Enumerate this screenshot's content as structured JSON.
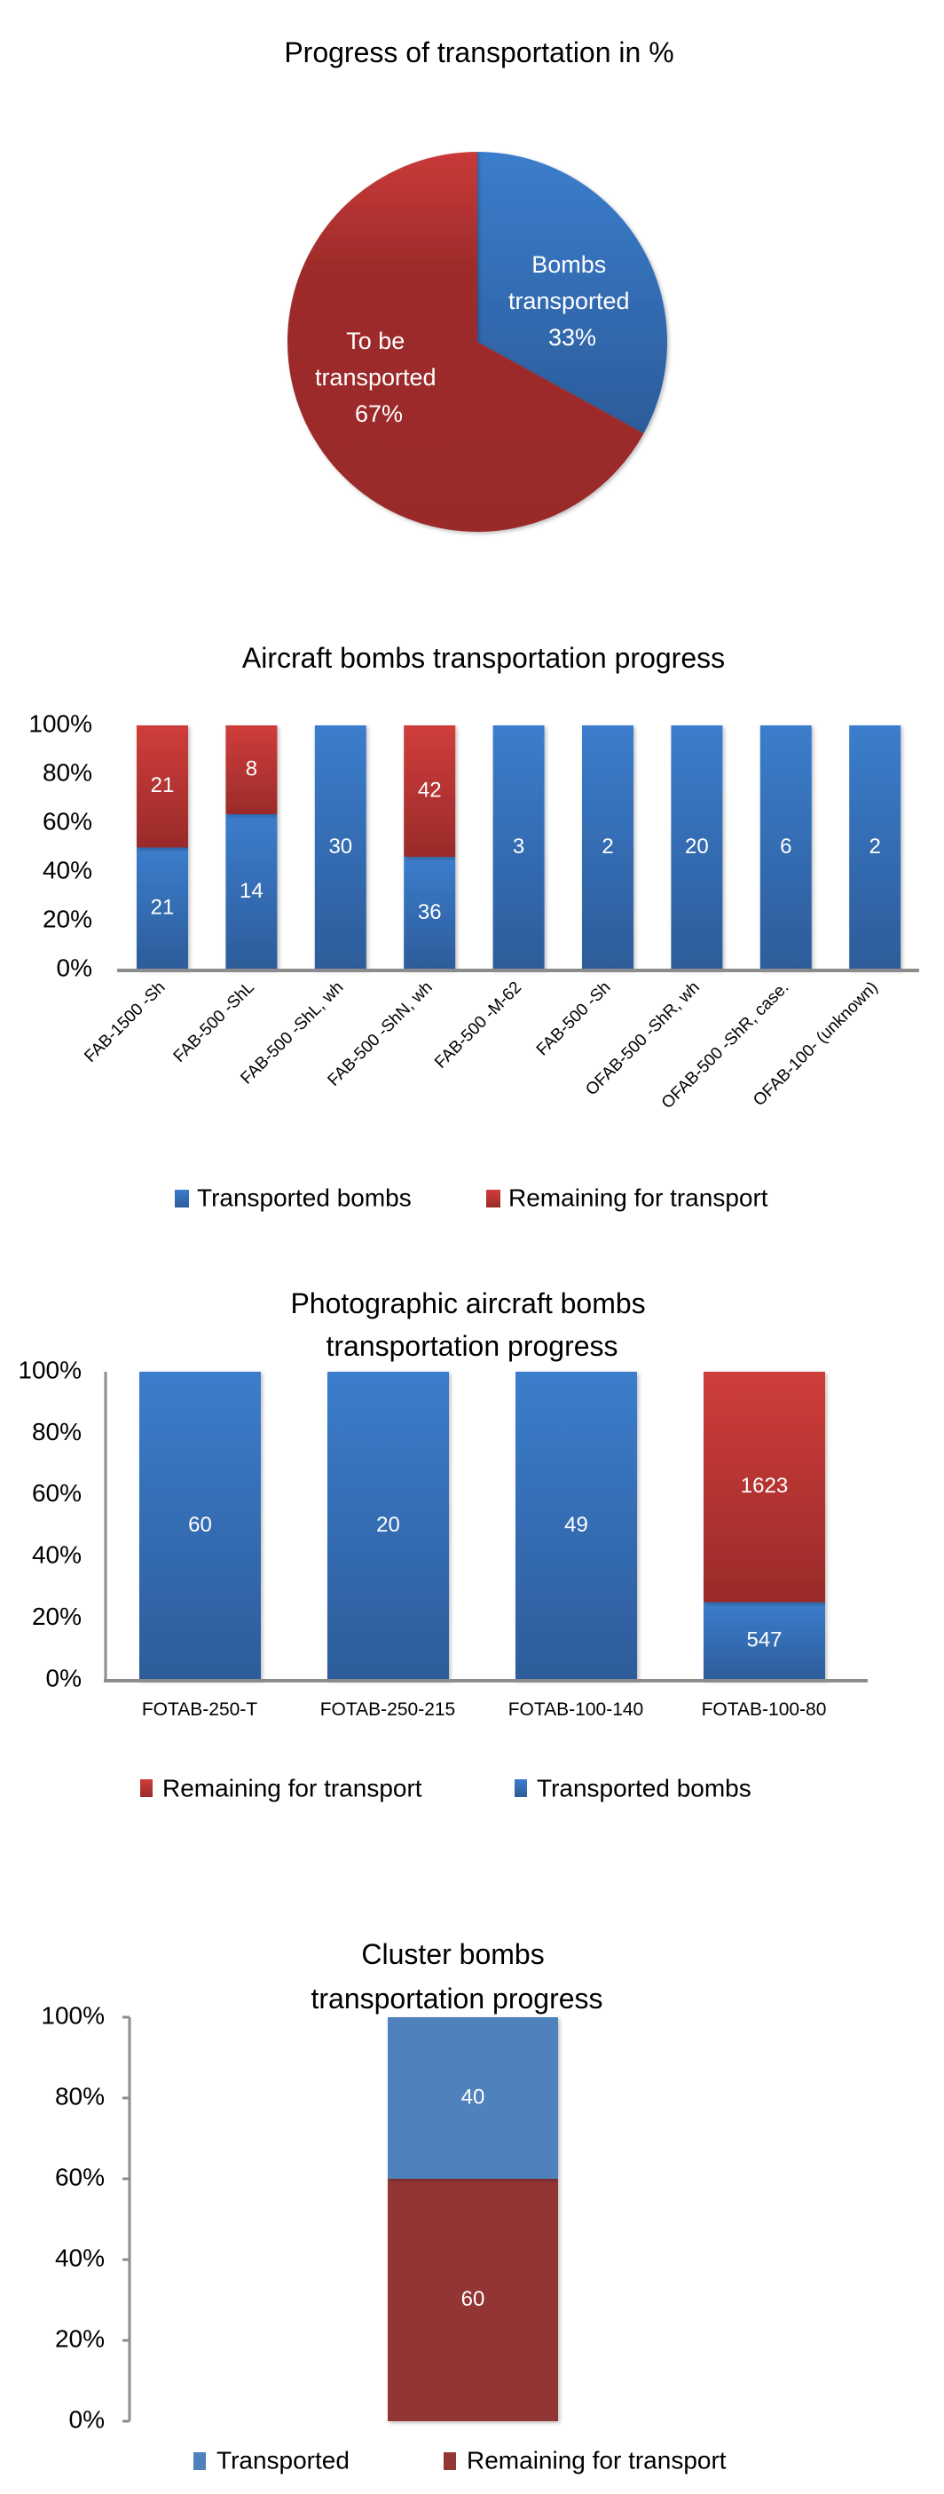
{
  "colors": {
    "blue": "#3a78c8",
    "blue_dark": "#2e5f9e",
    "red": "#cc3b38",
    "red_dark": "#9a2a29",
    "cluster_blue": "#4f81bd",
    "cluster_red": "#943634"
  },
  "chart_data": [
    {
      "type": "pie",
      "title": "Progress of transportation in %",
      "slices": [
        {
          "label": "Bombs transported",
          "value": 33,
          "display": "33%",
          "color_key": "blue"
        },
        {
          "label": "To be transported",
          "value": 67,
          "display": "67%",
          "color_key": "red"
        }
      ],
      "pie_labels": {
        "transported": [
          "Bombs",
          "transported",
          "33%"
        ],
        "remaining": [
          "To be",
          "transported",
          "67%"
        ]
      }
    },
    {
      "type": "bar",
      "stacked": "percent",
      "title": "Aircraft bombs transportation progress",
      "categories": [
        "FAB-1500 -Sh",
        "FAB-500 -ShL",
        "FAB-500 -ShL, wh",
        "FAB-500 -ShN, wh",
        "FAB-500 -M-62",
        "FAB-500 -Sh",
        "OFAB-500 -ShR, wh",
        "OFAB-500 -ShR, case.",
        "OFAB-100- (unknown)"
      ],
      "series": [
        {
          "name": "Transported bombs",
          "values": [
            21,
            14,
            30,
            36,
            3,
            2,
            20,
            6,
            2
          ],
          "color_key": "blue"
        },
        {
          "name": "Remaining for transport",
          "values": [
            21,
            8,
            0,
            42,
            0,
            0,
            0,
            0,
            0
          ],
          "color_key": "red"
        }
      ],
      "yticks": [
        "0%",
        "20%",
        "40%",
        "60%",
        "80%",
        "100%"
      ],
      "ylim": [
        0,
        100
      ],
      "legend_position": "bottom",
      "legend": [
        "Transported bombs",
        "Remaining for transport"
      ]
    },
    {
      "type": "bar",
      "stacked": "percent",
      "title": [
        "Photographic aircraft bombs",
        "transportation progress"
      ],
      "categories": [
        "FOTAB-250-T",
        "FOTAB-250-215",
        "FOTAB-100-140",
        "FOTAB-100-80"
      ],
      "series": [
        {
          "name": "Transported bombs",
          "values": [
            60,
            20,
            49,
            547
          ],
          "color_key": "blue"
        },
        {
          "name": "Remaining for transport",
          "values": [
            0,
            0,
            0,
            1623
          ],
          "color_key": "red"
        }
      ],
      "yticks": [
        "0%",
        "20%",
        "40%",
        "60%",
        "80%",
        "100%"
      ],
      "ylim": [
        0,
        100
      ],
      "legend_position": "bottom",
      "legend": [
        "Remaining for transport",
        "Transported bombs"
      ]
    },
    {
      "type": "bar",
      "stacked": "percent",
      "title": [
        "Cluster bombs",
        "transportation progress"
      ],
      "categories": [
        ""
      ],
      "series": [
        {
          "name": "Remaining for transport",
          "values": [
            60
          ],
          "color_key": "cluster_red"
        },
        {
          "name": "Transported",
          "values": [
            40
          ],
          "color_key": "cluster_blue"
        }
      ],
      "yticks": [
        "0%",
        "20%",
        "40%",
        "60%",
        "80%",
        "100%"
      ],
      "ylim": [
        0,
        100
      ],
      "legend_position": "bottom",
      "legend": [
        "Transported",
        "Remaining for transport"
      ]
    }
  ]
}
